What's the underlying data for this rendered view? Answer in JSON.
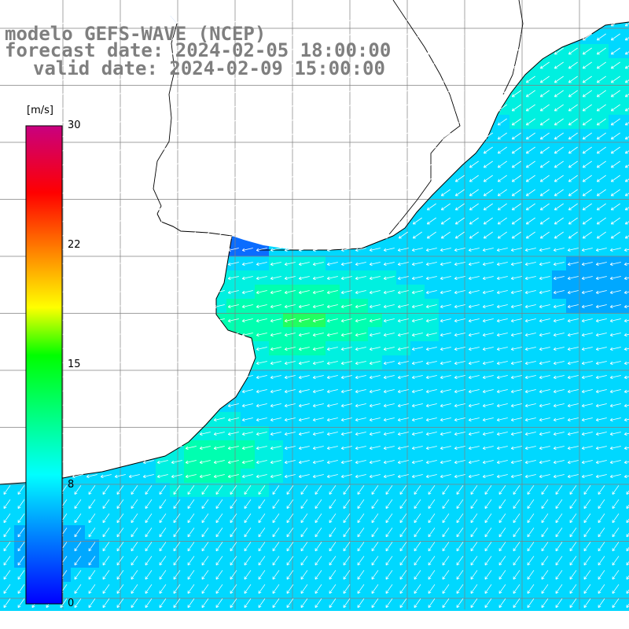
{
  "title": {
    "line1": "modelo GEFS-WAVE (NCEP)",
    "line2": "forecast date: 2024-02-05 18:00:00",
    "line3": "valid date: 2024-02-09 15:00:00"
  },
  "colorbar": {
    "unit": "[m/s]",
    "ticks": [
      {
        "label": "30",
        "value": 30
      },
      {
        "label": "22",
        "value": 22
      },
      {
        "label": "15",
        "value": 15
      },
      {
        "label": "8",
        "value": 8
      },
      {
        "label": "0",
        "value": 0
      }
    ],
    "colors": [
      "#0000ff",
      "#0080ff",
      "#00ffff",
      "#00ff00",
      "#ffff00",
      "#ff8000",
      "#ff0000",
      "#c80080"
    ]
  },
  "map": {
    "region": "Rio de la Plata / Uruguay / South Atlantic",
    "field": "wind speed at 10 m",
    "dominant_direction": "from east-northeast"
  }
}
